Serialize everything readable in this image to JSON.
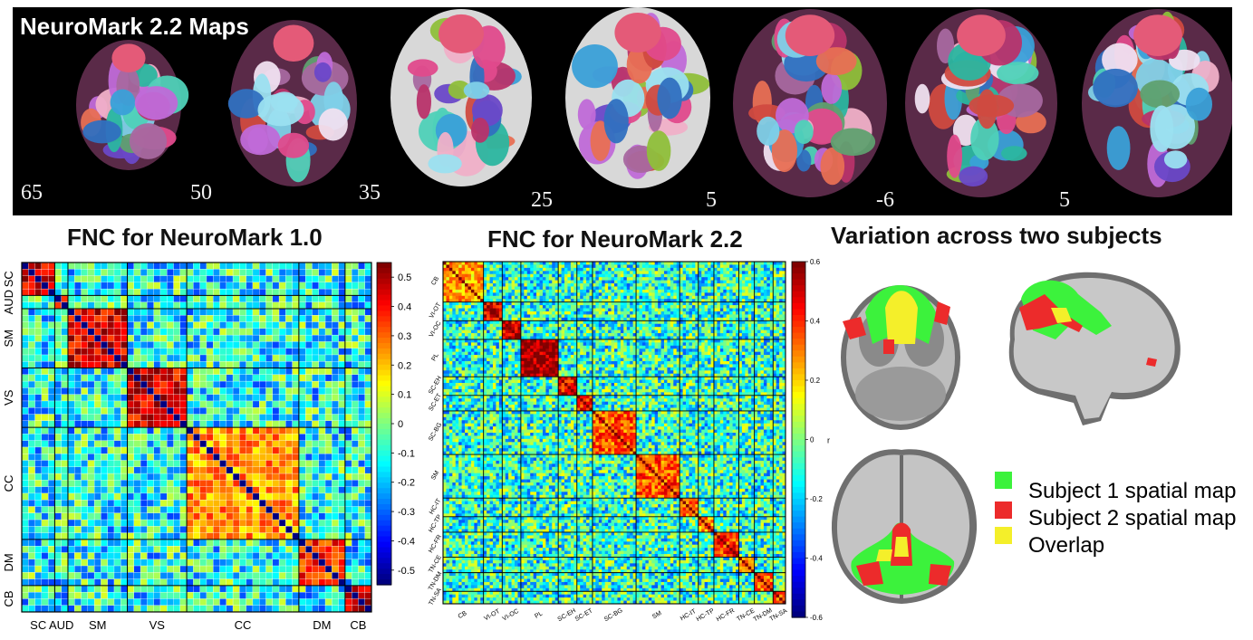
{
  "header": {
    "title": "NeuroMark 2.2 Maps"
  },
  "slice_labels": [
    "65",
    "50",
    "35",
    "25",
    "5",
    "-6",
    "5"
  ],
  "panels": {
    "fnc1": {
      "title": "FNC for NeuroMark 1.0"
    },
    "fnc22": {
      "title": "FNC for NeuroMark 2.2"
    },
    "variation": {
      "title": "Variation across two subjects"
    }
  },
  "fnc1": {
    "y_labels": [
      "SC",
      "AUD",
      "SM",
      "VS",
      "CC",
      "DM",
      "CB"
    ],
    "x_labels": [
      "SC",
      "AUD",
      "SM",
      "VS",
      "CC",
      "DM",
      "CB"
    ],
    "colorbar": {
      "ticks": [
        "0.5",
        "0.4",
        "0.3",
        "0.2",
        "0.1",
        "0",
        "-0.1",
        "-0.2",
        "-0.3",
        "-0.4",
        "-0.5"
      ]
    }
  },
  "fnc22": {
    "labels": [
      "CB",
      "VI-OT",
      "VI-OC",
      "PL",
      "SC-EH",
      "SC-ET",
      "SC-BG",
      "SM",
      "HC-IT",
      "HC-TP",
      "HC-FR",
      "TN-CE",
      "TN-DM",
      "TN-SA"
    ],
    "colorbar": {
      "ticks": [
        "0.6",
        "0.4",
        "0.2",
        "0",
        "-0.2",
        "-0.4",
        "-0.6"
      ],
      "unit": "r"
    }
  },
  "chart_data": [
    {
      "type": "heatmap",
      "title": "FNC for NeuroMark 1.0",
      "domains": [
        {
          "name": "SC",
          "size": 5
        },
        {
          "name": "AUD",
          "size": 2
        },
        {
          "name": "SM",
          "size": 9
        },
        {
          "name": "VS",
          "size": 9
        },
        {
          "name": "CC",
          "size": 17
        },
        {
          "name": "DM",
          "size": 7
        },
        {
          "name": "CB",
          "size": 4
        }
      ],
      "value_range": [
        -0.55,
        0.55
      ],
      "colormap": "jet",
      "colorbar_ticks": [
        0.5,
        0.4,
        0.3,
        0.2,
        0.1,
        0,
        -0.1,
        -0.2,
        -0.3,
        -0.4,
        -0.5
      ],
      "within_domain_mean": {
        "SC": 0.45,
        "AUD": 0.45,
        "SM": 0.45,
        "VS": 0.45,
        "CC": 0.25,
        "DM": 0.35,
        "CB": 0.5
      },
      "diagonal": -0.55
    },
    {
      "type": "heatmap",
      "title": "FNC for NeuroMark 2.2",
      "domains": [
        {
          "name": "CB",
          "size": 13
        },
        {
          "name": "VI-OT",
          "size": 6
        },
        {
          "name": "VI-OC",
          "size": 6
        },
        {
          "name": "PL",
          "size": 12
        },
        {
          "name": "SC-EH",
          "size": 6
        },
        {
          "name": "SC-ET",
          "size": 5
        },
        {
          "name": "SC-BG",
          "size": 14
        },
        {
          "name": "SM",
          "size": 14
        },
        {
          "name": "HC-IT",
          "size": 6
        },
        {
          "name": "HC-TP",
          "size": 5
        },
        {
          "name": "HC-FR",
          "size": 8
        },
        {
          "name": "TN-CE",
          "size": 5
        },
        {
          "name": "TN-DM",
          "size": 6
        },
        {
          "name": "TN-SA",
          "size": 4
        }
      ],
      "value_range": [
        -0.6,
        0.6
      ],
      "colormap": "jet",
      "colorbar_ticks": [
        0.6,
        0.4,
        0.2,
        0,
        -0.2,
        -0.4,
        -0.6
      ],
      "colorbar_label": "r",
      "diagonal": 0.6
    }
  ],
  "legend": {
    "items": [
      {
        "label": "Subject 1 spatial map",
        "color": "#3cf23c"
      },
      {
        "label": "Subject 2 spatial map",
        "color": "#ec2b2b"
      },
      {
        "label": "Overlap",
        "color": "#f4ef2a"
      }
    ]
  }
}
